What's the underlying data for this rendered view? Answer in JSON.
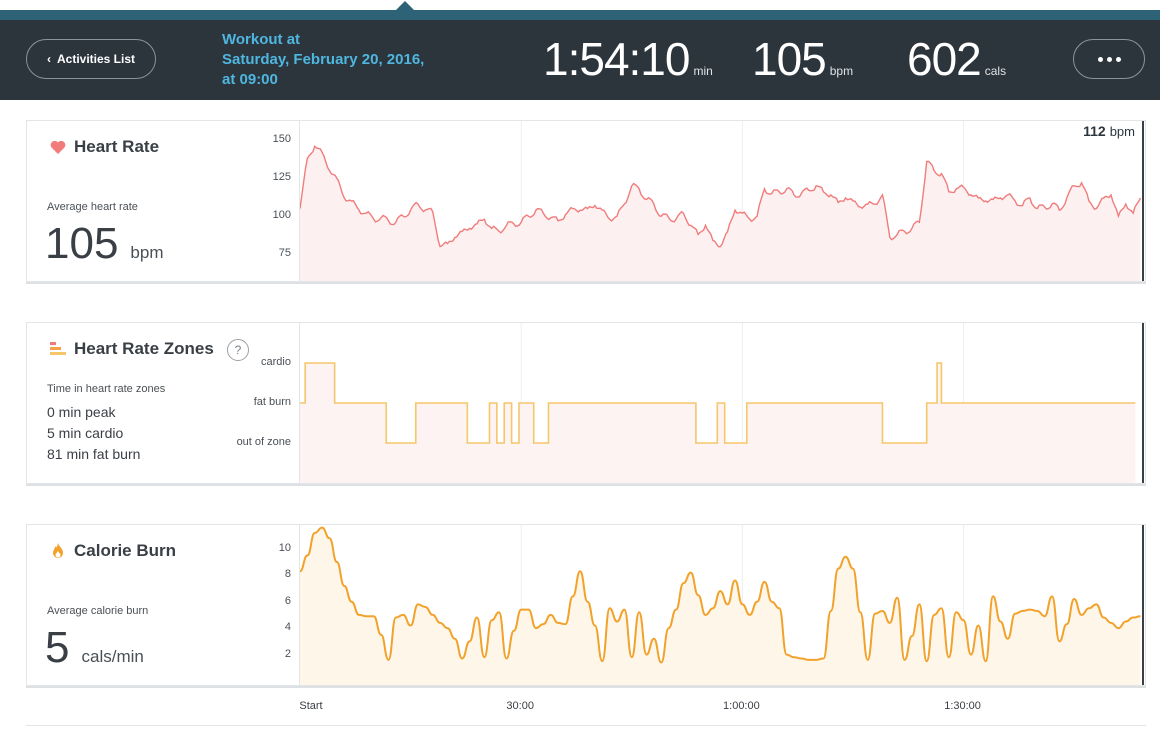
{
  "header": {
    "back_label": "Activities List",
    "workout_title_line1": "Workout at",
    "workout_title_line2": "Saturday, February 20, 2016,",
    "workout_title_line3": "at 09:00",
    "duration": "1:54:10",
    "duration_unit": "min",
    "heart_rate": "105",
    "heart_rate_unit": "bpm",
    "calories": "602",
    "calories_unit": "cals",
    "more_icon": "ellipsis-icon"
  },
  "heart_rate_panel": {
    "title": "Heart Rate",
    "icon": "heart-icon",
    "subtitle": "Average heart rate",
    "value": "105",
    "unit": "bpm",
    "peak_value": "112",
    "peak_unit": "bpm",
    "color": "#f07c7c",
    "fill": "#fdf0f0"
  },
  "zones_panel": {
    "title": "Heart Rate Zones",
    "icon": "zones-icon",
    "help": "?",
    "subtitle": "Time in heart rate zones",
    "peak": "0 min peak",
    "cardio": "5 min cardio",
    "fat_burn": "81 min fat burn",
    "color": "#f5c66a",
    "fill": "#fdf3f3"
  },
  "calorie_panel": {
    "title": "Calorie Burn",
    "icon": "flame-icon",
    "subtitle": "Average calorie burn",
    "value": "5",
    "unit": "cals/min",
    "color": "#f2a22b",
    "fill": "#fef6e9"
  },
  "x_axis": {
    "ticks": [
      "Start",
      "30:00",
      "1:00:00",
      "1:30:00"
    ]
  },
  "chart_data": [
    {
      "type": "line",
      "title": "Heart Rate",
      "ylabel": "",
      "ylim": [
        60,
        160
      ],
      "yticks": [
        "150",
        "125",
        "100",
        "75"
      ],
      "ytick_values": [
        150,
        125,
        100,
        75
      ],
      "x_minutes": [
        0,
        1,
        2,
        3,
        4,
        5,
        6,
        7,
        8,
        9,
        10,
        11,
        12,
        13,
        14,
        15,
        16,
        17,
        18,
        19,
        20,
        21,
        22,
        23,
        24,
        25,
        26,
        27,
        28,
        29,
        30,
        31,
        32,
        33,
        34,
        35,
        36,
        37,
        38,
        39,
        40,
        41,
        42,
        43,
        44,
        45,
        46,
        47,
        48,
        49,
        50,
        51,
        52,
        53,
        54,
        55,
        56,
        57,
        58,
        59,
        60,
        61,
        62,
        63,
        64,
        65,
        66,
        67,
        68,
        69,
        70,
        71,
        72,
        73,
        74,
        75,
        76,
        77,
        78,
        79,
        80,
        81,
        82,
        83,
        84,
        85,
        86,
        87,
        88,
        89,
        90,
        91,
        92,
        93,
        94,
        95,
        96,
        97,
        98,
        99,
        100,
        101,
        102,
        103,
        104,
        105,
        106,
        107,
        108,
        109,
        110,
        111,
        112,
        113,
        114
      ],
      "values": [
        105,
        138,
        146,
        142,
        130,
        125,
        112,
        110,
        104,
        102,
        98,
        99,
        97,
        96,
        100,
        104,
        108,
        104,
        103,
        80,
        82,
        86,
        90,
        92,
        95,
        98,
        92,
        90,
        94,
        95,
        96,
        100,
        104,
        102,
        99,
        97,
        101,
        105,
        104,
        105,
        107,
        104,
        98,
        100,
        108,
        120,
        118,
        111,
        108,
        100,
        99,
        98,
        102,
        94,
        88,
        94,
        84,
        80,
        90,
        104,
        102,
        98,
        100,
        118,
        115,
        116,
        118,
        114,
        115,
        117,
        120,
        116,
        114,
        109,
        112,
        110,
        106,
        108,
        108,
        114,
        86,
        88,
        90,
        92,
        96,
        136,
        130,
        128,
        116,
        118,
        119,
        114,
        112,
        110,
        111,
        112,
        114,
        110,
        107,
        112,
        105,
        106,
        108,
        104,
        112,
        120,
        122,
        110,
        105,
        112,
        114,
        100,
        108,
        102,
        112
      ]
    },
    {
      "type": "line",
      "title": "Heart Rate Zones",
      "categories": [
        "cardio",
        "fat burn",
        "out of zone"
      ],
      "x_minutes": [
        0,
        0.7,
        0.7,
        4.7,
        4.7,
        11.7,
        11.7,
        15.7,
        15.7,
        22.7,
        22.7,
        25.7,
        25.7,
        26.7,
        26.7,
        27.7,
        27.7,
        28.7,
        28.7,
        29.7,
        29.7,
        31.7,
        31.7,
        33.7,
        33.7,
        53.7,
        53.7,
        56.6,
        56.6,
        57.6,
        57.6,
        60.6,
        60.6,
        79,
        79,
        85,
        85,
        86.4,
        86.4,
        87,
        87,
        113.3
      ],
      "levels": [
        "fat burn",
        "fat burn",
        "cardio",
        "cardio",
        "fat burn",
        "fat burn",
        "out of zone",
        "out of zone",
        "fat burn",
        "fat burn",
        "out of zone",
        "out of zone",
        "fat burn",
        "fat burn",
        "out of zone",
        "out of zone",
        "fat burn",
        "fat burn",
        "out of zone",
        "out of zone",
        "fat burn",
        "fat burn",
        "out of zone",
        "out of zone",
        "fat burn",
        "fat burn",
        "out of zone",
        "out of zone",
        "fat burn",
        "fat burn",
        "out of zone",
        "out of zone",
        "fat burn",
        "fat burn",
        "out of zone",
        "out of zone",
        "fat burn",
        "fat burn",
        "cardio",
        "cardio",
        "fat burn",
        "fat burn"
      ]
    },
    {
      "type": "area",
      "title": "Calorie Burn",
      "ylim": [
        0,
        11.5
      ],
      "yticks": [
        "10",
        "8",
        "6",
        "4",
        "2"
      ],
      "ytick_values": [
        10,
        8,
        6,
        4,
        2
      ],
      "x_minutes": [
        0,
        1,
        2,
        3,
        4,
        5,
        6,
        7,
        8,
        9,
        10,
        11,
        12,
        13,
        14,
        15,
        16,
        17,
        18,
        19,
        20,
        21,
        22,
        23,
        24,
        25,
        26,
        27,
        28,
        29,
        30,
        31,
        32,
        33,
        34,
        35,
        36,
        37,
        38,
        39,
        40,
        41,
        42,
        43,
        44,
        45,
        46,
        47,
        48,
        49,
        50,
        51,
        52,
        53,
        54,
        55,
        56,
        57,
        58,
        59,
        60,
        61,
        62,
        63,
        64,
        65,
        66,
        67,
        68,
        69,
        70,
        71,
        72,
        73,
        74,
        75,
        76,
        77,
        78,
        79,
        80,
        81,
        82,
        83,
        84,
        85,
        86,
        87,
        88,
        89,
        90,
        91,
        92,
        93,
        94,
        95,
        96,
        97,
        98,
        99,
        100,
        101,
        102,
        103,
        104,
        105,
        106,
        107,
        108,
        109,
        110,
        111,
        112,
        113,
        114
      ],
      "values": [
        8.3,
        9.5,
        11.2,
        11.6,
        10.8,
        9.0,
        7.2,
        6.0,
        5.0,
        4.9,
        4.9,
        3.5,
        1.6,
        4.8,
        5.0,
        4.2,
        5.8,
        5.6,
        5.0,
        4.4,
        4.0,
        3.2,
        1.7,
        3.0,
        4.8,
        1.8,
        4.6,
        5.2,
        1.7,
        3.8,
        5.4,
        5.4,
        4.0,
        4.3,
        5.0,
        4.4,
        4.3,
        6.4,
        8.3,
        6.0,
        4.2,
        1.5,
        5.5,
        4.5,
        5.4,
        1.8,
        5.2,
        2.0,
        3.2,
        1.4,
        4.0,
        5.4,
        7.4,
        8.2,
        6.5,
        5.0,
        5.5,
        6.8,
        5.8,
        7.6,
        5.8,
        5.0,
        6.0,
        7.5,
        6.0,
        5.5,
        2.0,
        1.8,
        1.7,
        1.6,
        1.6,
        1.7,
        5.3,
        8.5,
        9.4,
        8.5,
        5.2,
        1.6,
        5.1,
        5.3,
        4.4,
        6.3,
        1.6,
        3.4,
        5.8,
        1.5,
        5.0,
        5.5,
        1.8,
        5.2,
        4.6,
        2.0,
        4.2,
        1.5,
        6.4,
        4.5,
        3.2,
        5.1,
        5.3,
        5.4,
        5.3,
        4.9,
        6.4,
        3.0,
        4.3,
        6.2,
        5.0,
        5.5,
        5.8,
        4.8,
        4.4,
        4.0,
        4.5,
        4.8,
        4.9
      ]
    }
  ]
}
